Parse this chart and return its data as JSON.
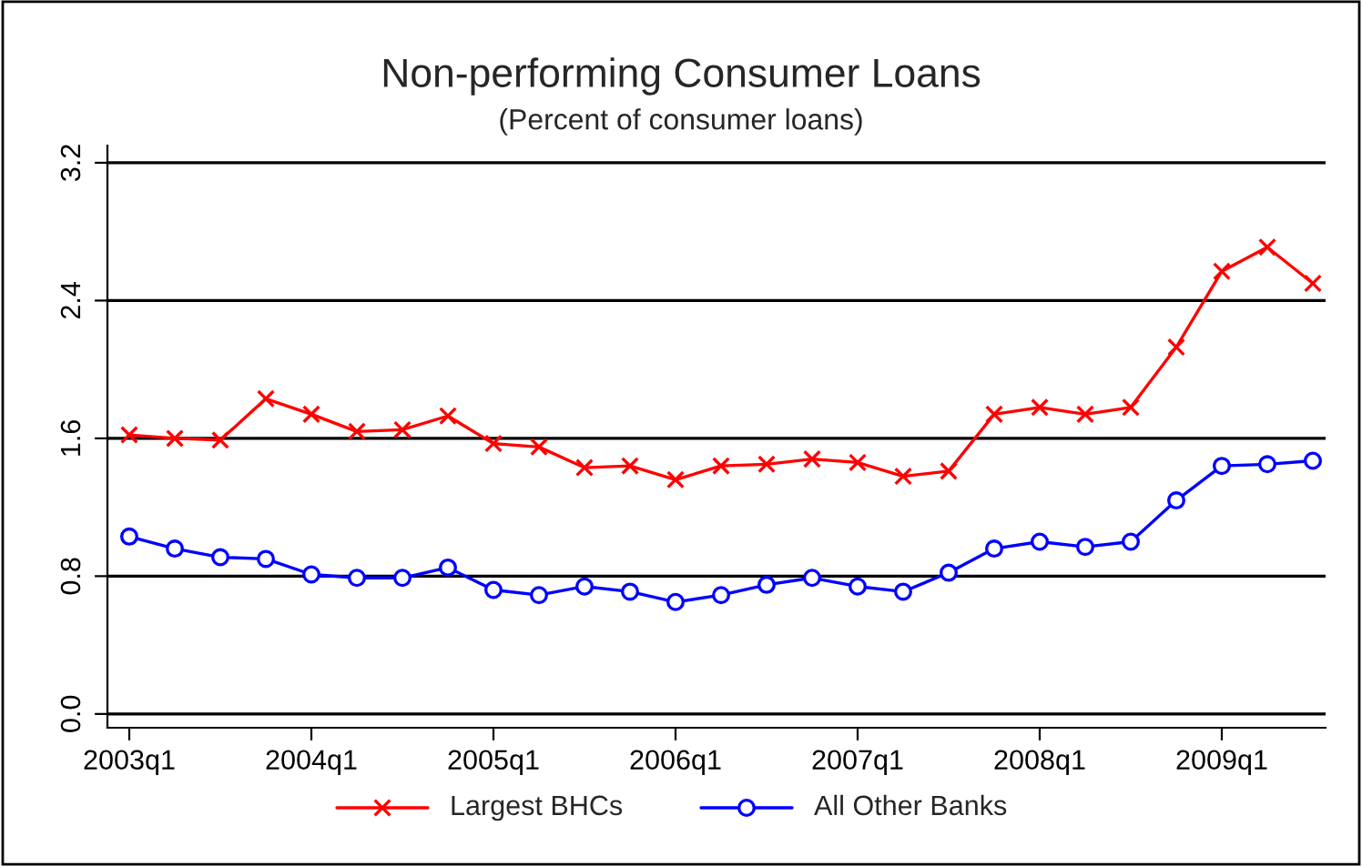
{
  "chart_data": {
    "type": "line",
    "title": "Non-performing Consumer Loans",
    "subtitle": "(Percent of consumer loans)",
    "categories": [
      "2003q1",
      null,
      null,
      null,
      "2004q1",
      null,
      null,
      null,
      "2005q1",
      null,
      null,
      null,
      "2006q1",
      null,
      null,
      null,
      "2007q1",
      null,
      null,
      null,
      "2008q1",
      null,
      null,
      null,
      "2009q1",
      null,
      null
    ],
    "series": [
      {
        "name": "Largest BHCs",
        "color": "#ff0000",
        "marker": "cross",
        "values": [
          1.62,
          1.6,
          1.59,
          1.83,
          1.74,
          1.64,
          1.65,
          1.73,
          1.57,
          1.55,
          1.43,
          1.44,
          1.36,
          1.44,
          1.45,
          1.48,
          1.46,
          1.38,
          1.41,
          1.74,
          1.78,
          1.74,
          1.78,
          2.13,
          2.57,
          2.71,
          2.5
        ]
      },
      {
        "name": "All Other Banks",
        "color": "#0000ff",
        "marker": "circle",
        "values": [
          1.03,
          0.96,
          0.91,
          0.9,
          0.81,
          0.79,
          0.79,
          0.85,
          0.72,
          0.69,
          0.74,
          0.71,
          0.65,
          0.69,
          0.75,
          0.79,
          0.74,
          0.71,
          0.82,
          0.96,
          1.0,
          0.97,
          1.0,
          1.24,
          1.44,
          1.45,
          1.47
        ]
      }
    ],
    "ylim": [
      -0.08,
      3.3
    ],
    "yticks": [
      {
        "value": 0,
        "label": "0.0"
      },
      {
        "value": 0.8,
        "label": "0.8"
      },
      {
        "value": 1.6,
        "label": "1.6"
      },
      {
        "value": 2.4,
        "label": "2.4"
      },
      {
        "value": 3.2,
        "label": "3.2"
      }
    ],
    "grid": "y",
    "legend": "bottom",
    "line_style": "solid"
  }
}
